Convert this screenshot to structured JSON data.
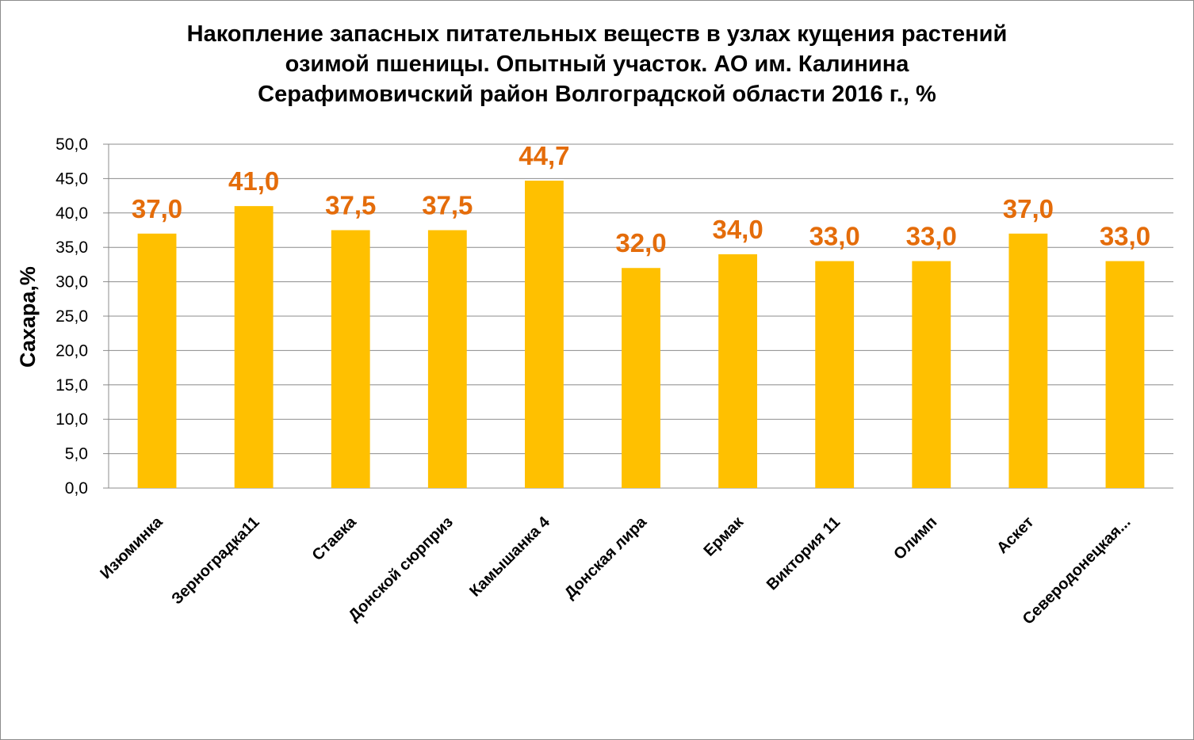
{
  "chart_data": {
    "type": "bar",
    "title_lines": [
      "Накопление запасных питательных веществ в узлах кущения растений",
      "озимой пшеницы. Опытный участок. АО им. Калинина",
      "Серафимовичский район Волгоградской области 2016 г., %"
    ],
    "ylabel": "Сахара,%",
    "xlabel": "",
    "categories": [
      "Изюминка",
      "Зерноградка11",
      "Ставка",
      "Донской сюрприз",
      "Камышанка 4",
      "Донская лира",
      "Ермак",
      "Виктория 11",
      "Олимп",
      "Аскет",
      "Северодонецкая..."
    ],
    "values": [
      37.0,
      41.0,
      37.5,
      37.5,
      44.7,
      32.0,
      34.0,
      33.0,
      33.0,
      37.0,
      33.0
    ],
    "data_labels": [
      "37,0",
      "41,0",
      "37,5",
      "37,5",
      "44,7",
      "32,0",
      "34,0",
      "33,0",
      "33,0",
      "37,0",
      "33,0"
    ],
    "yticks": [
      "0,0",
      "5,0",
      "10,0",
      "15,0",
      "20,0",
      "25,0",
      "30,0",
      "35,0",
      "40,0",
      "45,0",
      "50,0"
    ],
    "ylim": [
      0,
      50
    ],
    "ytick_step": 5,
    "grid": true,
    "legend": "none",
    "bar_color": "#FFC000",
    "label_color": "#E46C0A",
    "grid_color": "#8c8c8c"
  }
}
